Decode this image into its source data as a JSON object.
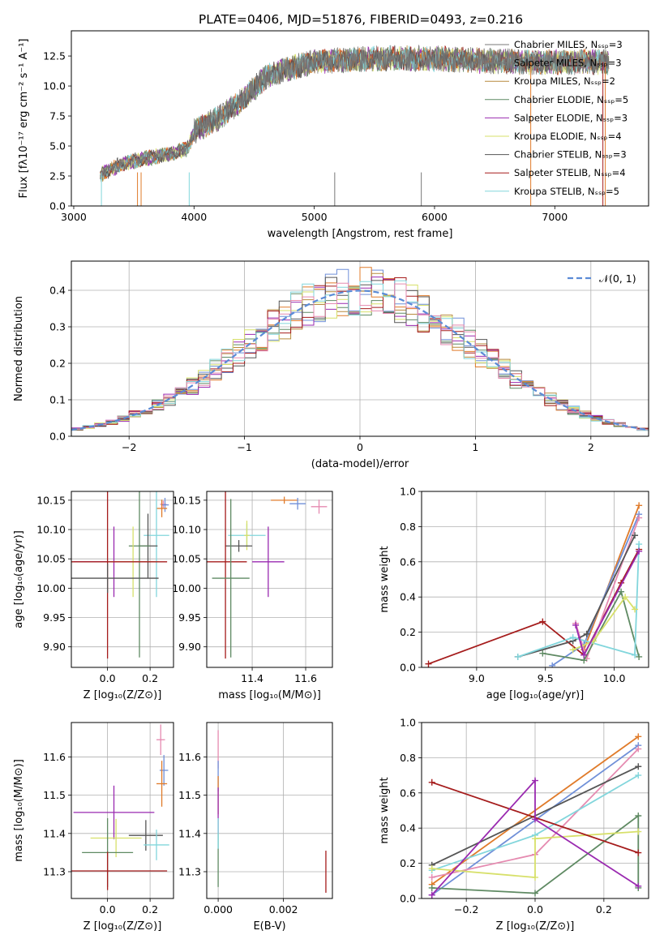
{
  "figure_title": "PLATE=0406, MJD=51876, FIBERID=0493, z=0.216",
  "series_colors": [
    "#6f8fd8",
    "#e07b2a",
    "#b88a3e",
    "#5f8a63",
    "#9a2ab0",
    "#d7e06a",
    "#555555",
    "#a51c1c",
    "#82d6dc",
    "#e58ab0"
  ],
  "chart_data": [
    {
      "id": "spectrum",
      "type": "line",
      "xlabel": "wavelength [Angstrom, rest frame]",
      "ylabel": "Flux [fλ10⁻¹⁷ erg cm⁻² s⁻¹ A⁻¹]",
      "xlim": [
        2980,
        7780
      ],
      "ylim": [
        0,
        14.6
      ],
      "xticks": [
        3000,
        4000,
        5000,
        6000,
        7000
      ],
      "yticks": [
        0.0,
        2.5,
        5.0,
        7.5,
        10.0,
        12.5
      ],
      "xticklabels": [
        "3000",
        "4000",
        "5000",
        "6000",
        "7000"
      ],
      "yticklabels": [
        "0.0",
        "2.5",
        "5.0",
        "7.5",
        "10.0",
        "12.5"
      ],
      "continuum": [
        [
          3220,
          2.6
        ],
        [
          3400,
          3.5
        ],
        [
          3600,
          4.0
        ],
        [
          3800,
          4.3
        ],
        [
          3950,
          4.8
        ],
        [
          4000,
          6.2
        ],
        [
          4200,
          7.3
        ],
        [
          4400,
          8.8
        ],
        [
          4600,
          10.8
        ],
        [
          4800,
          11.5
        ],
        [
          5000,
          12.0
        ],
        [
          5300,
          12.2
        ],
        [
          5600,
          12.3
        ],
        [
          6000,
          12.3
        ],
        [
          6400,
          12.1
        ],
        [
          6800,
          12.0
        ],
        [
          7200,
          12.0
        ],
        [
          7450,
          12.0
        ]
      ],
      "legend": [
        "Chabrier MILES, Nₛₛₚ=3",
        "Salpeter MILES, Nₛₛₚ=3",
        "Kroupa MILES, Nₛₛₚ=2",
        "Chabrier ELODIE, Nₛₛₚ=5",
        "Salpeter ELODIE, Nₛₛₚ=3",
        "Kroupa ELODIE, Nₛₛₚ=4",
        "Chabrier STELIB, Nₛₛₚ=3",
        "Salpeter STELIB, Nₛₛₚ=4",
        "Kroupa STELIB, Nₛₛₚ=5"
      ],
      "legend_colors": [
        "#7a7a7a",
        "#7a7a7a",
        "#b88a3e",
        "#5f8a63",
        "#9a2ab0",
        "#d7e06a",
        "#555555",
        "#a51c1c",
        "#82d6dc"
      ],
      "legend_position": "right"
    },
    {
      "id": "residuals",
      "type": "line",
      "xlabel": "(data-model)/error",
      "ylabel": "Normed distribution",
      "xlim": [
        -2.5,
        2.5
      ],
      "ylim": [
        0,
        0.48
      ],
      "xticks": [
        -2,
        -1,
        0,
        1,
        2
      ],
      "yticks": [
        0.0,
        0.1,
        0.2,
        0.3,
        0.4
      ],
      "xticklabels": [
        "−2",
        "−1",
        "0",
        "1",
        "2"
      ],
      "yticklabels": [
        "0.0",
        "0.1",
        "0.2",
        "0.3",
        "0.4"
      ],
      "grid": true,
      "gaussian_label": "𝒩(0, 1)",
      "legend_position": "top-right",
      "gaussian_color": "#5b8bd6"
    },
    {
      "id": "age_vs_Z",
      "type": "scatter",
      "xlabel": "Z [log₁₀(Z/Z⊙)]",
      "ylabel": "age  [log₁₀(age/yr)]",
      "xlim": [
        -0.17,
        0.31
      ],
      "ylim": [
        9.865,
        10.165
      ],
      "xticks": [
        0.0,
        0.2
      ],
      "yticks": [
        9.9,
        9.95,
        10.0,
        10.05,
        10.1,
        10.15
      ],
      "xticklabels": [
        "0.0",
        "0.2"
      ],
      "yticklabels": [
        "9.90",
        "9.95",
        "10.00",
        "10.05",
        "10.10",
        "10.15"
      ],
      "grid": true,
      "points": [
        {
          "x": 0.262,
          "y": 10.143,
          "xerr": 0.015,
          "yerr": 0.006,
          "c": "#e58ab0"
        },
        {
          "x": 0.27,
          "y": 10.142,
          "xerr": 0.018,
          "yerr": 0.012,
          "c": "#6f8fd8"
        },
        {
          "x": 0.255,
          "y": 10.136,
          "xerr": 0.025,
          "yerr": 0.015,
          "c": "#e07b2a"
        },
        {
          "x": 0.23,
          "y": 10.09,
          "xerr": 0.06,
          "yerr": 0.105,
          "c": "#82d6dc"
        },
        {
          "x": 0.19,
          "y": 10.072,
          "xerr": 0.045,
          "yerr": 0.055,
          "c": "#555555"
        },
        {
          "x": 0.15,
          "y": 10.072,
          "xerr": 0.05,
          "yerr": 0.19,
          "c": "#5f8a63"
        },
        {
          "x": 0.03,
          "y": 10.045,
          "xerr": 0.19,
          "yerr": 0.06,
          "c": "#9a2ab0"
        },
        {
          "x": 0.12,
          "y": 10.045,
          "xerr": 0.12,
          "yerr": 0.06,
          "c": "#d7e06a"
        },
        {
          "x": 0.0,
          "y": 10.045,
          "xerr": 0.28,
          "yerr": 0.165,
          "c": "#a51c1c"
        },
        {
          "x": 0.0,
          "y": 10.017,
          "xerr": 0.24,
          "yerr": 0.025,
          "c": "#555555"
        }
      ]
    },
    {
      "id": "age_vs_mass",
      "type": "scatter",
      "xlabel": "mass [log₁₀(M/M⊙)]",
      "ylabel": "",
      "xlim": [
        11.23,
        11.7
      ],
      "ylim": [
        9.865,
        10.165
      ],
      "xticks": [
        11.4,
        11.6
      ],
      "yticks": [
        9.9,
        9.95,
        10.0,
        10.05,
        10.1,
        10.15
      ],
      "xticklabels": [
        "11.4",
        "11.6"
      ],
      "yticklabels": [
        "9.90",
        "9.95",
        "10.00",
        "10.05",
        "10.10",
        "10.15"
      ],
      "grid": true,
      "points": [
        {
          "x": 11.52,
          "y": 10.15,
          "xerr": 0.05,
          "yerr": 0.006,
          "c": "#e07b2a"
        },
        {
          "x": 11.57,
          "y": 10.144,
          "xerr": 0.03,
          "yerr": 0.01,
          "c": "#6f8fd8"
        },
        {
          "x": 11.65,
          "y": 10.139,
          "xerr": 0.03,
          "yerr": 0.012,
          "c": "#e58ab0"
        },
        {
          "x": 11.38,
          "y": 10.09,
          "xerr": 0.07,
          "yerr": 0.02,
          "c": "#82d6dc"
        },
        {
          "x": 11.38,
          "y": 10.09,
          "xerr": 0.01,
          "yerr": 0.025,
          "c": "#d7e06a"
        },
        {
          "x": 11.35,
          "y": 10.072,
          "xerr": 0.05,
          "yerr": 0.01,
          "c": "#555555"
        },
        {
          "x": 11.46,
          "y": 10.045,
          "xerr": 0.06,
          "yerr": 0.06,
          "c": "#9a2ab0"
        },
        {
          "x": 11.3,
          "y": 10.045,
          "xerr": 0.08,
          "yerr": 0.165,
          "c": "#a51c1c"
        },
        {
          "x": 11.32,
          "y": 10.017,
          "xerr": 0.07,
          "yerr": 0.135,
          "c": "#5f8a63"
        }
      ]
    },
    {
      "id": "mass_weight_vs_age",
      "type": "line",
      "xlabel": "age  [log₁₀(age/yr)]",
      "ylabel": "mass weight",
      "xlim": [
        8.6,
        10.25
      ],
      "ylim": [
        0,
        1.0
      ],
      "xticks": [
        9.0,
        9.5,
        10.0
      ],
      "yticks": [
        0.0,
        0.2,
        0.4,
        0.6,
        0.8,
        1.0
      ],
      "xticklabels": [
        "9.0",
        "9.5",
        "10.0"
      ],
      "yticklabels": [
        "0.0",
        "0.2",
        "0.4",
        "0.6",
        "0.8",
        "1.0"
      ],
      "grid": true,
      "series": [
        {
          "c": "#a51c1c",
          "x": [
            8.65,
            9.48,
            9.78,
            10.05,
            10.18
          ],
          "y": [
            0.02,
            0.26,
            0.07,
            0.48,
            0.67
          ]
        },
        {
          "c": "#e07b2a",
          "x": [
            9.78,
            10.18
          ],
          "y": [
            0.1,
            0.92
          ]
        },
        {
          "c": "#6f8fd8",
          "x": [
            9.55,
            9.78,
            10.18
          ],
          "y": [
            0.01,
            0.13,
            0.87
          ]
        },
        {
          "c": "#e58ab0",
          "x": [
            9.72,
            9.8,
            10.18
          ],
          "y": [
            0.25,
            0.05,
            0.85
          ]
        },
        {
          "c": "#555555",
          "x": [
            9.3,
            9.7,
            9.8,
            10.15
          ],
          "y": [
            0.06,
            0.15,
            0.19,
            0.75
          ]
        },
        {
          "c": "#5f8a63",
          "x": [
            9.48,
            9.78,
            10.05,
            10.18
          ],
          "y": [
            0.08,
            0.04,
            0.43,
            0.06
          ]
        },
        {
          "c": "#82d6dc",
          "x": [
            9.3,
            9.7,
            10.15,
            10.18
          ],
          "y": [
            0.06,
            0.17,
            0.07,
            0.7
          ]
        },
        {
          "c": "#d7e06a",
          "x": [
            9.7,
            9.85,
            10.08,
            10.15
          ],
          "y": [
            0.1,
            0.15,
            0.4,
            0.33
          ]
        },
        {
          "c": "#9a2ab0",
          "x": [
            9.72,
            9.78,
            10.18
          ],
          "y": [
            0.24,
            0.07,
            0.66
          ]
        }
      ]
    },
    {
      "id": "mass_vs_Z",
      "type": "scatter",
      "xlabel": "Z [log₁₀(Z/Z⊙)]",
      "ylabel": "mass [log₁₀(M/M⊙)]",
      "xlim": [
        -0.17,
        0.31
      ],
      "ylim": [
        11.23,
        11.69
      ],
      "xticks": [
        0.0,
        0.2
      ],
      "yticks": [
        11.3,
        11.4,
        11.5,
        11.6
      ],
      "xticklabels": [
        "0.0",
        "0.2"
      ],
      "yticklabels": [
        "11.3",
        "11.4",
        "11.5",
        "11.6"
      ],
      "grid": true,
      "points": [
        {
          "x": 0.25,
          "y": 11.645,
          "xerr": 0.02,
          "yerr": 0.04,
          "c": "#e58ab0"
        },
        {
          "x": 0.265,
          "y": 11.565,
          "xerr": 0.02,
          "yerr": 0.04,
          "c": "#6f8fd8"
        },
        {
          "x": 0.255,
          "y": 11.53,
          "xerr": 0.025,
          "yerr": 0.06,
          "c": "#e07b2a"
        },
        {
          "x": 0.03,
          "y": 11.455,
          "xerr": 0.19,
          "yerr": 0.07,
          "c": "#9a2ab0"
        },
        {
          "x": 0.18,
          "y": 11.395,
          "xerr": 0.08,
          "yerr": 0.04,
          "c": "#555555"
        },
        {
          "x": 0.04,
          "y": 11.388,
          "xerr": 0.12,
          "yerr": 0.05,
          "c": "#d7e06a"
        },
        {
          "x": 0.23,
          "y": 11.37,
          "xerr": 0.06,
          "yerr": 0.04,
          "c": "#82d6dc"
        },
        {
          "x": 0.0,
          "y": 11.35,
          "xerr": 0.12,
          "yerr": 0.09,
          "c": "#5f8a63"
        },
        {
          "x": 0.0,
          "y": 11.302,
          "xerr": 0.28,
          "yerr": 0.05,
          "c": "#a51c1c"
        }
      ]
    },
    {
      "id": "mass_vs_EBV",
      "type": "scatter",
      "xlabel": "E(B-V)",
      "ylabel": "",
      "xlim": [
        -0.00035,
        0.0035
      ],
      "ylim": [
        11.23,
        11.69
      ],
      "xticks": [
        0.0,
        0.002
      ],
      "yticks": [
        11.3,
        11.4,
        11.5,
        11.6
      ],
      "xticklabels": [
        "0.000",
        "0.002"
      ],
      "yticklabels": [
        "11.3",
        "11.4",
        "11.5",
        "11.6"
      ],
      "grid": true,
      "points": [
        {
          "x": 0.0,
          "y": 11.62,
          "xerr": 0.0,
          "yerr": 0.05,
          "c": "#e58ab0"
        },
        {
          "x": 0.0,
          "y": 11.55,
          "xerr": 0.0,
          "yerr": 0.04,
          "c": "#6f8fd8"
        },
        {
          "x": 0.0,
          "y": 11.5,
          "xerr": 0.0,
          "yerr": 0.05,
          "c": "#e07b2a"
        },
        {
          "x": 0.0,
          "y": 11.46,
          "xerr": 0.0,
          "yerr": 0.06,
          "c": "#9a2ab0"
        },
        {
          "x": 0.0,
          "y": 11.33,
          "xerr": 0.0,
          "yerr": 0.07,
          "c": "#5f8a63"
        },
        {
          "x": 0.0,
          "y": 11.4,
          "xerr": 0.0,
          "yerr": 0.04,
          "c": "#82d6dc"
        },
        {
          "x": 0.0033,
          "y": 11.3,
          "xerr": 0.0,
          "yerr": 0.055,
          "c": "#a51c1c"
        }
      ]
    },
    {
      "id": "mass_weight_vs_Z",
      "type": "line",
      "xlabel": "Z [log₁₀(Z/Z⊙)]",
      "ylabel": "mass weight",
      "xlim": [
        -0.33,
        0.33
      ],
      "ylim": [
        0,
        1.0
      ],
      "xticks": [
        -0.2,
        0.0,
        0.2
      ],
      "yticks": [
        0.0,
        0.2,
        0.4,
        0.6,
        0.8,
        1.0
      ],
      "xticklabels": [
        "−0.2",
        "0.0",
        "0.2"
      ],
      "yticklabels": [
        "0.0",
        "0.2",
        "0.4",
        "0.6",
        "0.8",
        "1.0"
      ],
      "grid": true,
      "series": [
        {
          "c": "#e07b2a",
          "x": [
            -0.3,
            0.3
          ],
          "y": [
            0.08,
            0.92
          ]
        },
        {
          "c": "#6f8fd8",
          "x": [
            -0.3,
            0.3
          ],
          "y": [
            0.02,
            0.87
          ]
        },
        {
          "c": "#e58ab0",
          "x": [
            -0.3,
            0.0,
            0.3
          ],
          "y": [
            0.12,
            0.25,
            0.85
          ]
        },
        {
          "c": "#555555",
          "x": [
            -0.3,
            0.3
          ],
          "y": [
            0.19,
            0.75
          ]
        },
        {
          "c": "#82d6dc",
          "x": [
            -0.3,
            0.0,
            0.3
          ],
          "y": [
            0.16,
            0.36,
            0.7
          ]
        },
        {
          "c": "#5f8a63",
          "x": [
            -0.3,
            0.0,
            0.3,
            0.3
          ],
          "y": [
            0.06,
            0.03,
            0.47,
            0.06
          ]
        },
        {
          "c": "#d7e06a",
          "x": [
            -0.3,
            0.0,
            0.0,
            0.3
          ],
          "y": [
            0.17,
            0.12,
            0.34,
            0.38
          ]
        },
        {
          "c": "#a51c1c",
          "x": [
            -0.3,
            0.3
          ],
          "y": [
            0.66,
            0.26
          ]
        },
        {
          "c": "#9a2ab0",
          "x": [
            -0.3,
            0.0,
            0.0,
            0.3
          ],
          "y": [
            0.02,
            0.67,
            0.45,
            0.07
          ]
        }
      ]
    }
  ]
}
